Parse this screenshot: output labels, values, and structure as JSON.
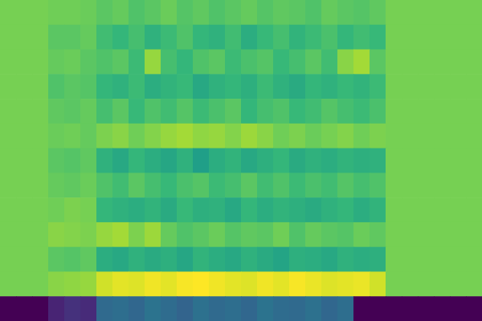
{
  "chart_data": {
    "type": "heatmap",
    "color": "viridis",
    "tick_labels": false,
    "cells": [
      [
        0.79,
        0.79,
        0.79,
        0.78,
        0.78,
        0.77,
        0.74,
        0.76,
        0.72,
        0.74,
        0.77,
        0.73,
        0.75,
        0.72,
        0.74,
        0.76,
        0.73,
        0.75,
        0.74,
        0.72,
        0.76,
        0.74,
        0.73,
        0.75,
        0.79,
        0.79,
        0.79,
        0.79,
        0.79,
        0.79
      ],
      [
        0.79,
        0.79,
        0.79,
        0.74,
        0.74,
        0.76,
        0.69,
        0.66,
        0.7,
        0.64,
        0.68,
        0.72,
        0.66,
        0.64,
        0.69,
        0.62,
        0.67,
        0.7,
        0.65,
        0.68,
        0.71,
        0.66,
        0.69,
        0.67,
        0.79,
        0.79,
        0.79,
        0.79,
        0.79,
        0.79
      ],
      [
        0.79,
        0.79,
        0.79,
        0.76,
        0.77,
        0.74,
        0.72,
        0.74,
        0.68,
        0.84,
        0.7,
        0.66,
        0.72,
        0.74,
        0.68,
        0.71,
        0.73,
        0.67,
        0.7,
        0.74,
        0.69,
        0.82,
        0.86,
        0.74,
        0.79,
        0.79,
        0.79,
        0.79,
        0.79,
        0.79
      ],
      [
        0.79,
        0.79,
        0.79,
        0.72,
        0.74,
        0.73,
        0.66,
        0.64,
        0.68,
        0.62,
        0.65,
        0.67,
        0.6,
        0.64,
        0.66,
        0.63,
        0.68,
        0.64,
        0.61,
        0.66,
        0.64,
        0.67,
        0.65,
        0.68,
        0.79,
        0.79,
        0.79,
        0.79,
        0.79,
        0.79
      ],
      [
        0.79,
        0.79,
        0.79,
        0.75,
        0.74,
        0.76,
        0.7,
        0.74,
        0.67,
        0.72,
        0.69,
        0.73,
        0.68,
        0.71,
        0.74,
        0.66,
        0.7,
        0.72,
        0.67,
        0.69,
        0.73,
        0.7,
        0.68,
        0.71,
        0.79,
        0.79,
        0.79,
        0.79,
        0.79,
        0.79
      ],
      [
        0.79,
        0.79,
        0.79,
        0.77,
        0.78,
        0.76,
        0.8,
        0.82,
        0.78,
        0.81,
        0.84,
        0.86,
        0.83,
        0.84,
        0.81,
        0.85,
        0.82,
        0.78,
        0.8,
        0.77,
        0.79,
        0.81,
        0.78,
        0.8,
        0.79,
        0.79,
        0.79,
        0.79,
        0.79,
        0.79
      ],
      [
        0.79,
        0.79,
        0.79,
        0.74,
        0.73,
        0.75,
        0.64,
        0.6,
        0.66,
        0.62,
        0.59,
        0.64,
        0.56,
        0.62,
        0.65,
        0.6,
        0.63,
        0.66,
        0.61,
        0.64,
        0.62,
        0.65,
        0.63,
        0.64,
        0.79,
        0.79,
        0.79,
        0.79,
        0.79,
        0.79
      ],
      [
        0.79,
        0.79,
        0.79,
        0.76,
        0.75,
        0.77,
        0.72,
        0.69,
        0.74,
        0.7,
        0.67,
        0.71,
        0.73,
        0.68,
        0.7,
        0.74,
        0.69,
        0.72,
        0.68,
        0.71,
        0.69,
        0.73,
        0.7,
        0.72,
        0.79,
        0.79,
        0.79,
        0.79,
        0.79,
        0.79
      ],
      [
        0.79,
        0.79,
        0.79,
        0.78,
        0.8,
        0.79,
        0.66,
        0.64,
        0.62,
        0.65,
        0.61,
        0.67,
        0.63,
        0.64,
        0.6,
        0.66,
        0.62,
        0.65,
        0.63,
        0.61,
        0.64,
        0.66,
        0.62,
        0.65,
        0.79,
        0.79,
        0.79,
        0.79,
        0.79,
        0.79
      ],
      [
        0.79,
        0.79,
        0.79,
        0.82,
        0.81,
        0.8,
        0.84,
        0.86,
        0.8,
        0.85,
        0.76,
        0.72,
        0.74,
        0.77,
        0.73,
        0.75,
        0.74,
        0.78,
        0.72,
        0.76,
        0.74,
        0.73,
        0.77,
        0.75,
        0.79,
        0.79,
        0.79,
        0.79,
        0.79,
        0.79
      ],
      [
        0.79,
        0.79,
        0.79,
        0.74,
        0.73,
        0.75,
        0.62,
        0.6,
        0.64,
        0.61,
        0.63,
        0.59,
        0.65,
        0.62,
        0.6,
        0.64,
        0.61,
        0.58,
        0.63,
        0.62,
        0.6,
        0.64,
        0.62,
        0.63,
        0.79,
        0.79,
        0.79,
        0.79,
        0.79,
        0.79
      ],
      [
        0.79,
        0.79,
        0.79,
        0.82,
        0.83,
        0.84,
        0.93,
        0.96,
        0.95,
        0.98,
        0.96,
        0.99,
        1,
        0.98,
        0.96,
        0.95,
        0.98,
        0.96,
        0.99,
        0.97,
        0.95,
        0.96,
        0.97,
        0.93,
        0.79,
        0.79,
        0.79,
        0.79,
        0.79,
        0.79
      ],
      [
        0,
        0,
        0,
        0.1,
        0.14,
        0.12,
        0.34,
        0.36,
        0.33,
        0.38,
        0.35,
        0.32,
        0.37,
        0.34,
        0.36,
        0.33,
        0.38,
        0.35,
        0.34,
        0.37,
        0.33,
        0.36,
        0,
        0,
        0,
        0,
        0,
        0,
        0,
        0
      ]
    ]
  }
}
